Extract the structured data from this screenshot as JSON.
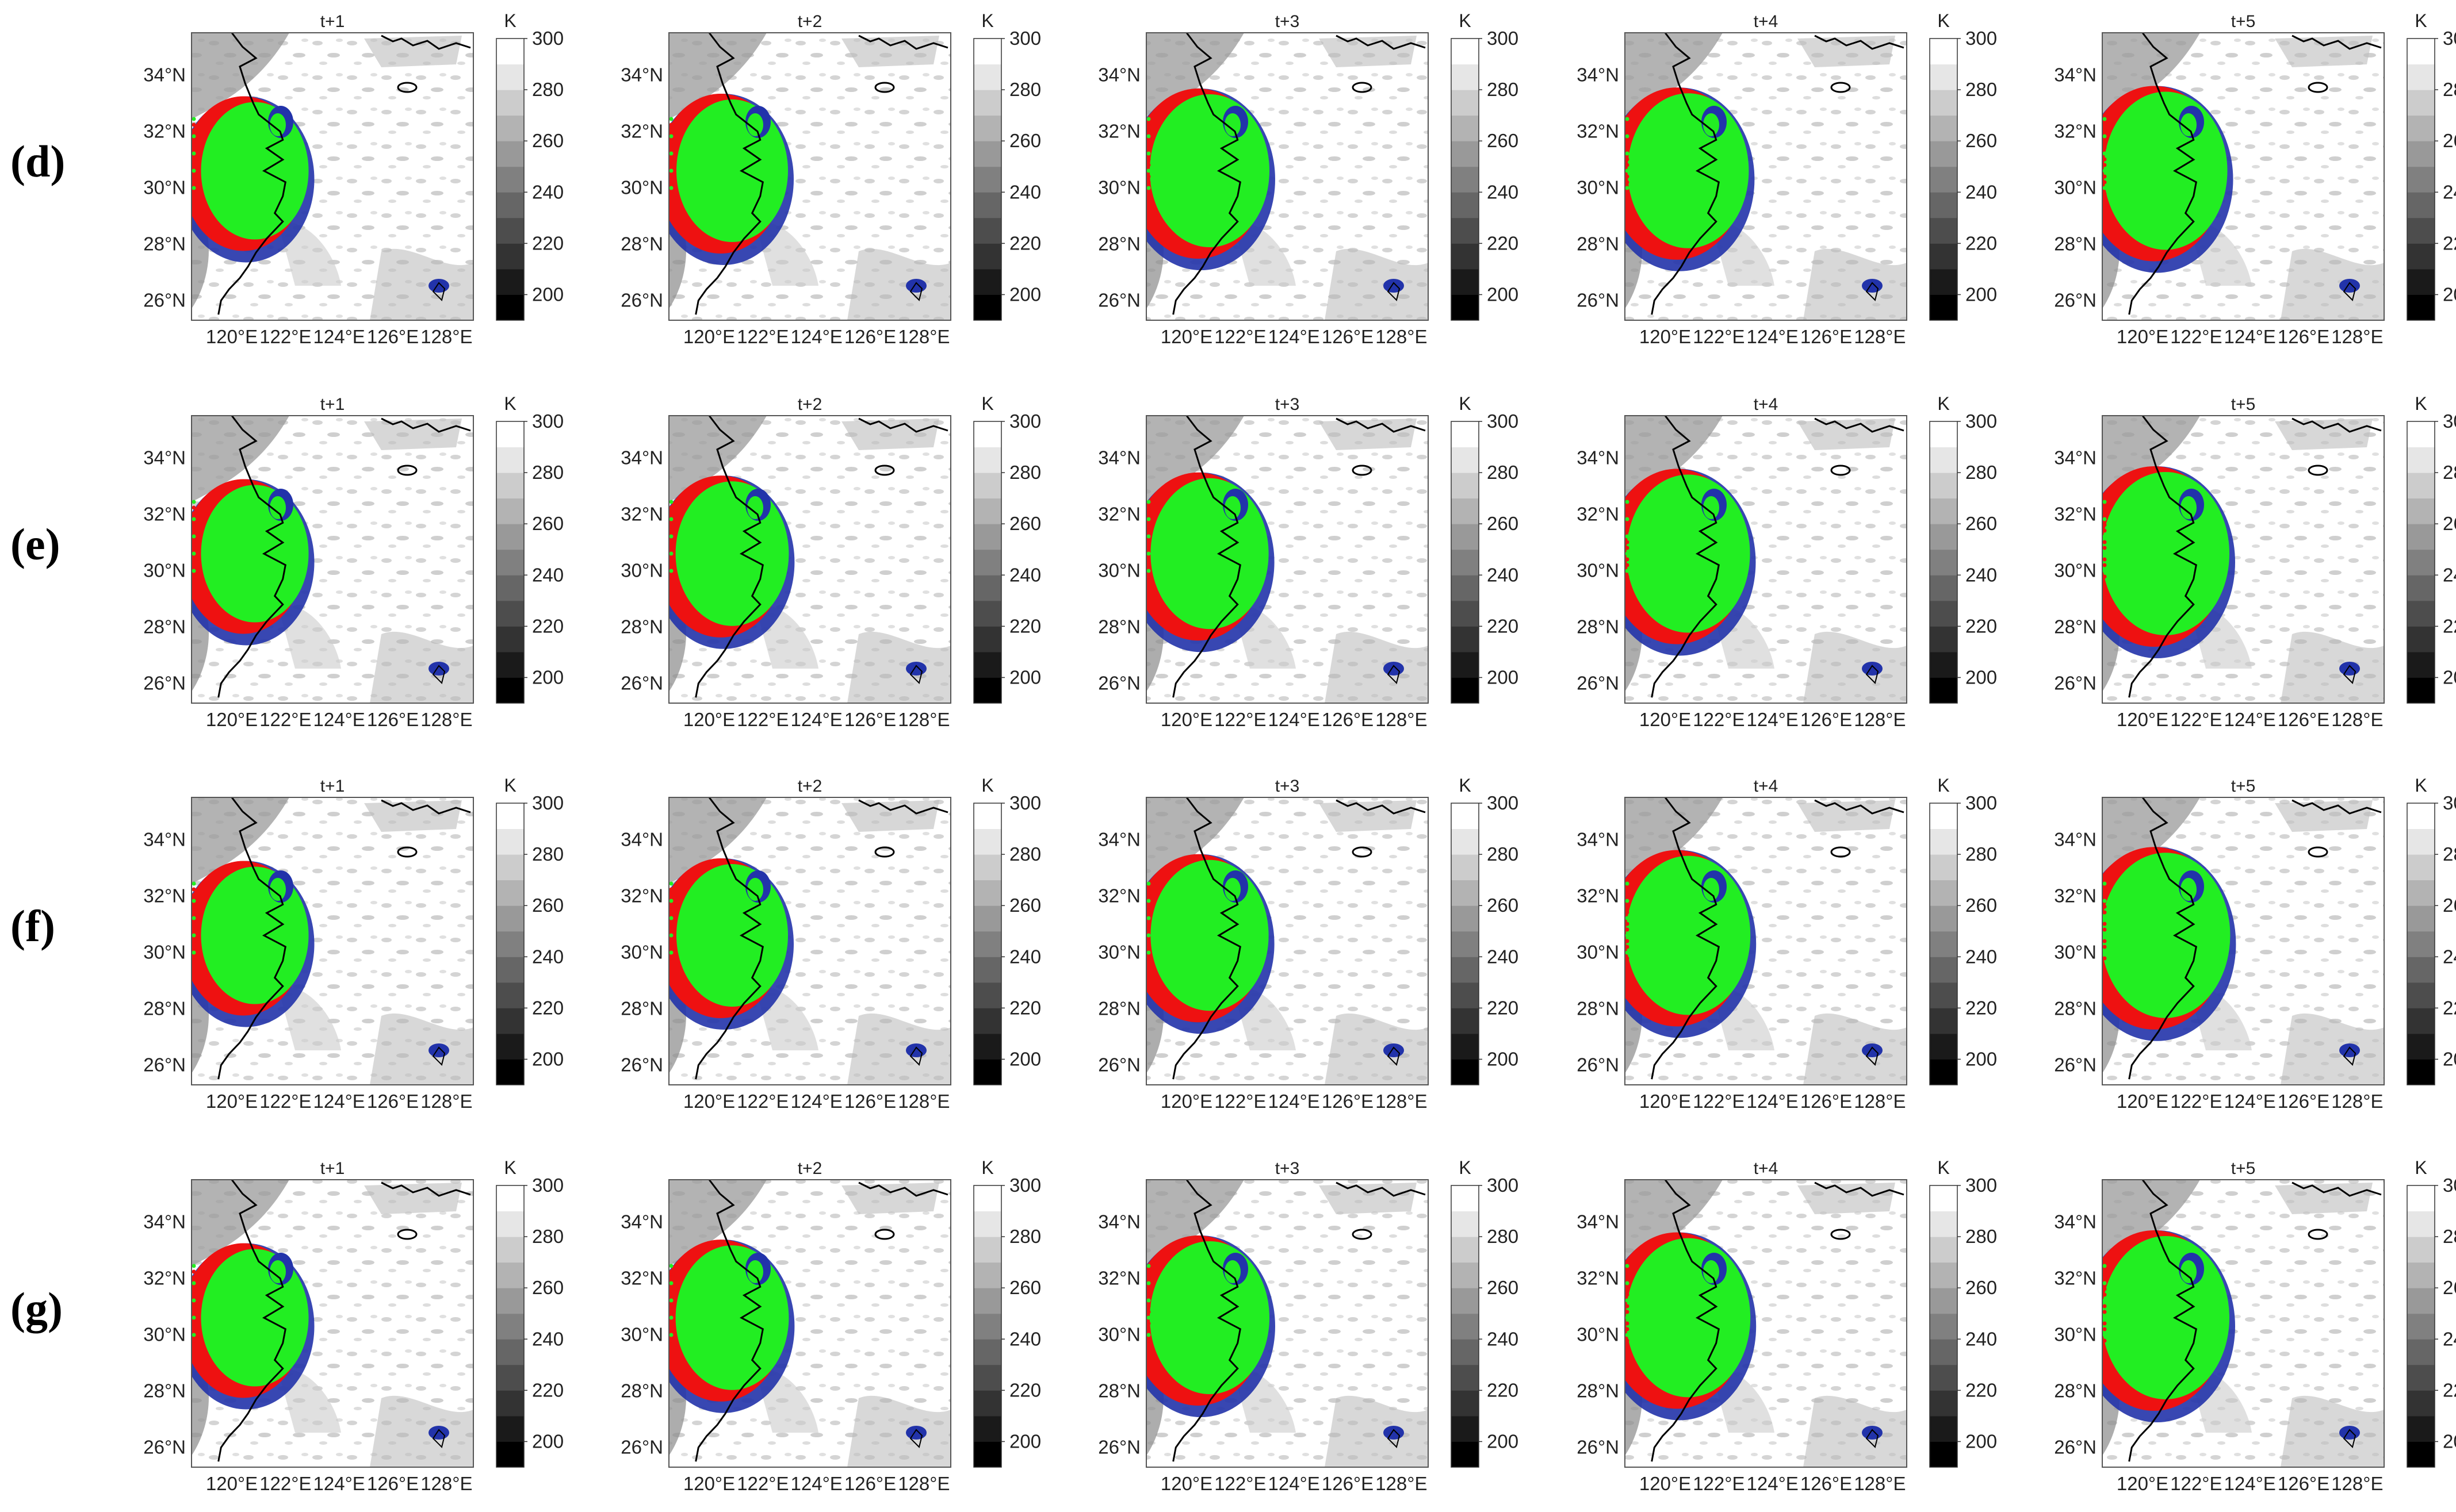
{
  "figure": {
    "rows": [
      "(d)",
      "(e)",
      "(f)",
      "(g)"
    ],
    "panel_titles": [
      "t+1",
      "t+2",
      "t+3",
      "t+4",
      "t+5"
    ],
    "lat_ticks": [
      "26°N",
      "28°N",
      "30°N",
      "32°N",
      "34°N"
    ],
    "lon_ticks": [
      "120°E",
      "122°E",
      "124°E",
      "126°E",
      "128°E"
    ]
  },
  "colorbar": {
    "unit": "K",
    "ticks": [
      "200",
      "220",
      "240",
      "260",
      "280",
      "300"
    ],
    "range": [
      190,
      300
    ]
  },
  "colors": {
    "green": "#22ee22",
    "red": "#ee1111",
    "blue": "#2233aa",
    "coast": "#000000"
  },
  "chart_data": {
    "type": "heatmap",
    "grid": {
      "rows": 4,
      "cols": 5
    },
    "xlim": [
      118.5,
      129
    ],
    "ylim": [
      25.3,
      35.5
    ],
    "series": [
      {
        "row": "(d)",
        "growth": [
          0.55,
          0.6,
          0.7,
          0.72,
          0.75
        ]
      },
      {
        "row": "(e)",
        "growth": [
          0.55,
          0.62,
          0.68,
          0.75,
          0.8
        ]
      },
      {
        "row": "(f)",
        "growth": [
          0.55,
          0.6,
          0.68,
          0.76,
          0.82
        ]
      },
      {
        "row": "(g)",
        "growth": [
          0.55,
          0.62,
          0.7,
          0.76,
          0.8
        ]
      }
    ]
  }
}
